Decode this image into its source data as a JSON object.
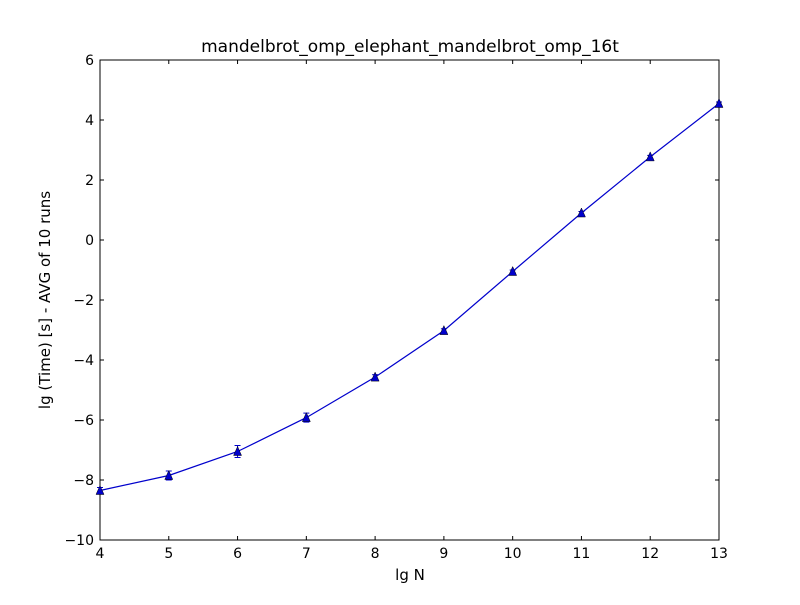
{
  "chart_data": {
    "type": "line",
    "title": "mandelbrot_omp_elephant_mandelbrot_omp_16t",
    "xlabel": "lg N",
    "ylabel": "lg (Time) [s] - AVG of 10 runs",
    "xlim": [
      4,
      13
    ],
    "ylim": [
      -10,
      6
    ],
    "xticks": [
      4,
      5,
      6,
      7,
      8,
      9,
      10,
      11,
      12,
      13
    ],
    "yticks": [
      -10,
      -8,
      -6,
      -4,
      -2,
      0,
      2,
      4,
      6
    ],
    "grid": false,
    "legend": "none",
    "series": [
      {
        "color": "#0000cc",
        "marker": "triangle-up",
        "x": [
          4,
          5,
          6,
          7,
          8,
          9,
          10,
          11,
          12,
          13
        ],
        "y": [
          -8.35,
          -7.85,
          -7.05,
          -5.92,
          -4.57,
          -3.02,
          -1.05,
          0.9,
          2.77,
          4.55
        ],
        "yerr": [
          0.1,
          0.15,
          0.2,
          0.15,
          0.08,
          0.06,
          0.05,
          0.05,
          0.05,
          0.05
        ]
      }
    ]
  }
}
